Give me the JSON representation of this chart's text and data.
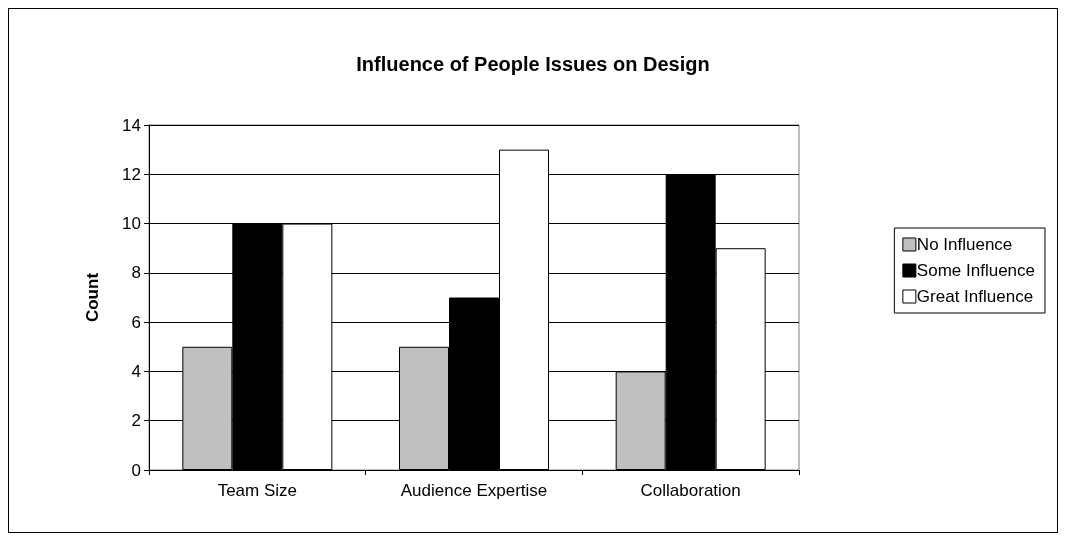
{
  "chart_data": {
    "type": "bar",
    "title": "Influence of People Issues on Design",
    "ylabel": "Count",
    "categories": [
      "Team Size",
      "Audience Expertise",
      "Collaboration"
    ],
    "series": [
      {
        "name": "No Influence",
        "color": "#c0c0c0",
        "values": [
          5,
          5,
          4
        ]
      },
      {
        "name": "Some Influence",
        "color": "#000000",
        "values": [
          10,
          7,
          12
        ]
      },
      {
        "name": "Great Influence",
        "color": "#ffffff",
        "values": [
          10,
          13,
          9
        ]
      }
    ],
    "ylim": [
      0,
      14
    ],
    "yticks": [
      0,
      2,
      4,
      6,
      8,
      10,
      12,
      14
    ],
    "grid": "y",
    "legend": "right"
  }
}
